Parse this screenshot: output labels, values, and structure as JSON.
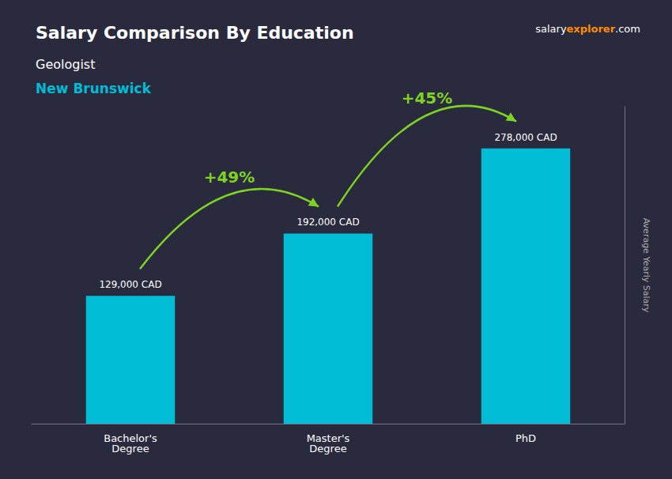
{
  "chart_data": {
    "type": "bar",
    "title": "Salary Comparison By Education",
    "subtitle": "Geologist",
    "location": "New Brunswick",
    "categories": [
      "Bachelor's\nDegree",
      "Master's\nDegree",
      "PhD"
    ],
    "values": [
      129000,
      192000,
      278000
    ],
    "value_labels": [
      "129,000 CAD",
      "192,000 CAD",
      "278,000 CAD"
    ],
    "data_labels": true,
    "color": "#00bcd4",
    "background_color": "#2a2a3e",
    "ylim": [
      0,
      320000
    ],
    "ylabel": "Average Yearly Salary",
    "grid": false,
    "tick_labels": "x",
    "annotations": [
      {
        "text": "+49%",
        "color": "#7ed321"
      },
      {
        "text": "+45%",
        "color": "#7ed321"
      }
    ],
    "watermark": [
      {
        "text": "salary"
      },
      {
        "text": "explorer",
        "color": "#ff8c00"
      },
      {
        "text": ".com"
      }
    ]
  }
}
